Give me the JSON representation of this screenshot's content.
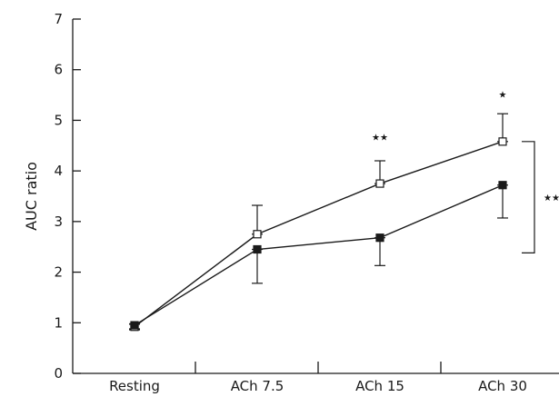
{
  "chart_data": {
    "type": "line",
    "xlabel": "",
    "ylabel": "AUC ratio",
    "ylim": [
      0,
      7
    ],
    "yticks": [
      "0",
      "1",
      "2",
      "3",
      "4",
      "5",
      "6",
      "7"
    ],
    "categories": [
      "Resting",
      "ACh 7.5",
      "ACh 15",
      "ACh 30"
    ],
    "series": [
      {
        "marker": "open-square",
        "values": [
          0.92,
          2.75,
          3.75,
          4.58
        ],
        "error_upper": [
          0.97,
          3.32,
          4.2,
          5.13
        ],
        "error_lower": [
          0.86,
          2.75,
          3.75,
          4.58
        ]
      },
      {
        "marker": "filled-square",
        "values": [
          0.95,
          2.45,
          2.68,
          3.72
        ],
        "error_upper": [
          0.98,
          2.45,
          2.68,
          3.72
        ],
        "error_lower": [
          0.88,
          1.78,
          2.13,
          3.07
        ]
      }
    ],
    "annotations": [
      {
        "text": "★★",
        "x": "ACh 15",
        "y": 4.6
      },
      {
        "text": "★",
        "x": "ACh 30",
        "y": 5.45
      }
    ],
    "bracket": {
      "text": "★★",
      "y_from": 2.38,
      "y_to": 4.58
    },
    "grid": false,
    "legend": "none"
  }
}
